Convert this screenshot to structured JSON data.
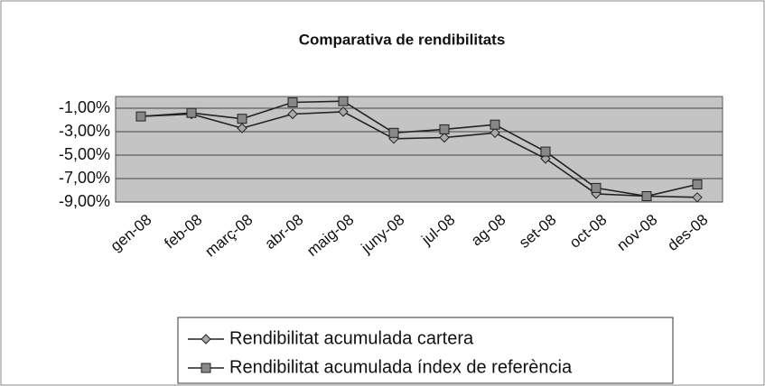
{
  "chart_data": {
    "type": "line",
    "title": "Comparativa de rendibilitats",
    "categories": [
      "gen-08",
      "feb-08",
      "març-08",
      "abr-08",
      "maig-08",
      "juny-08",
      "jul-08",
      "ag-08",
      "set-08",
      "oct-08",
      "nov-08",
      "des-08"
    ],
    "series": [
      {
        "name": "Rendibilitat acumulada cartera",
        "color": "#222222",
        "marker": "diamond",
        "values": [
          -1.7,
          -1.5,
          -2.7,
          -1.5,
          -1.3,
          -3.6,
          -3.5,
          -3.1,
          -5.3,
          -8.3,
          -8.5,
          -8.6
        ]
      },
      {
        "name": "Rendibilitat acumulada índex de referència",
        "color": "#222222",
        "marker": "square",
        "values": [
          -1.7,
          -1.4,
          -1.9,
          -0.5,
          -0.4,
          -3.1,
          -2.8,
          -2.4,
          -4.7,
          -7.8,
          -8.5,
          -7.5
        ]
      }
    ],
    "ylim": [
      -9,
      0
    ],
    "yticks": [
      {
        "value": -1,
        "label": "-1,00%"
      },
      {
        "value": -3,
        "label": "-3,00%"
      },
      {
        "value": -5,
        "label": "-5,00%"
      },
      {
        "value": -7,
        "label": "-7,00%"
      },
      {
        "value": -9,
        "label": "-9,00%"
      }
    ],
    "grid": true,
    "plot_background": "#c4c4c4",
    "legend": "bottom"
  }
}
